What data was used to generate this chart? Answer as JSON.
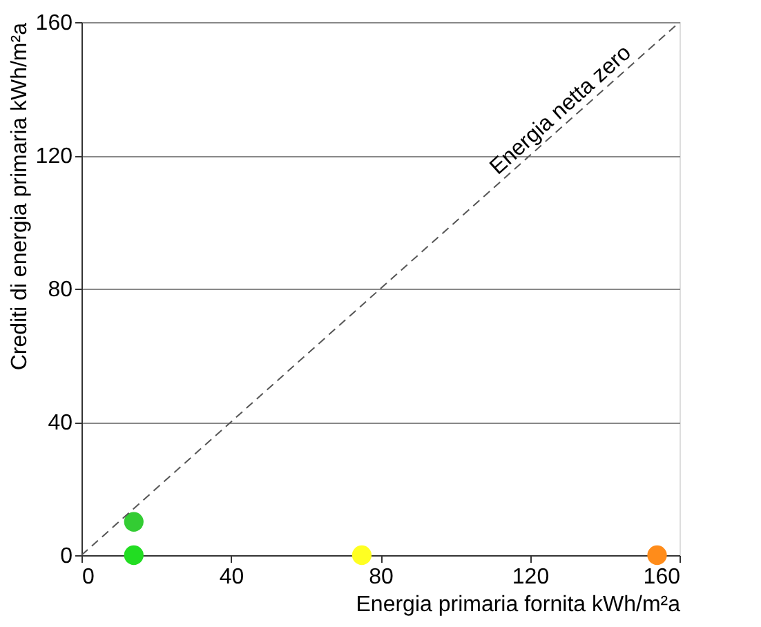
{
  "chart_data": {
    "type": "scatter",
    "xlabel": "Energia primaria fornita kWh/m²a",
    "ylabel": "Crediti di energia primaria kWh/m²a",
    "xlim": [
      0,
      160
    ],
    "ylim": [
      0,
      160
    ],
    "xticks": [
      0,
      40,
      80,
      120,
      160
    ],
    "yticks": [
      0,
      40,
      80,
      120,
      160
    ],
    "grid": "y",
    "series": [
      {
        "type": "scatter",
        "marker": "circle",
        "x": [
          14,
          14,
          75,
          154
        ],
        "values": [
          10,
          0,
          0,
          0
        ],
        "colors": [
          "#33cc33",
          "#22dd22",
          "#ffff22",
          "#ff8c1a"
        ]
      },
      {
        "type": "line",
        "name": "Energia netta zero",
        "color": "#555555",
        "line_style": "dashed",
        "marker": "none",
        "x": [
          0,
          160
        ],
        "values": [
          0,
          160
        ]
      }
    ]
  }
}
